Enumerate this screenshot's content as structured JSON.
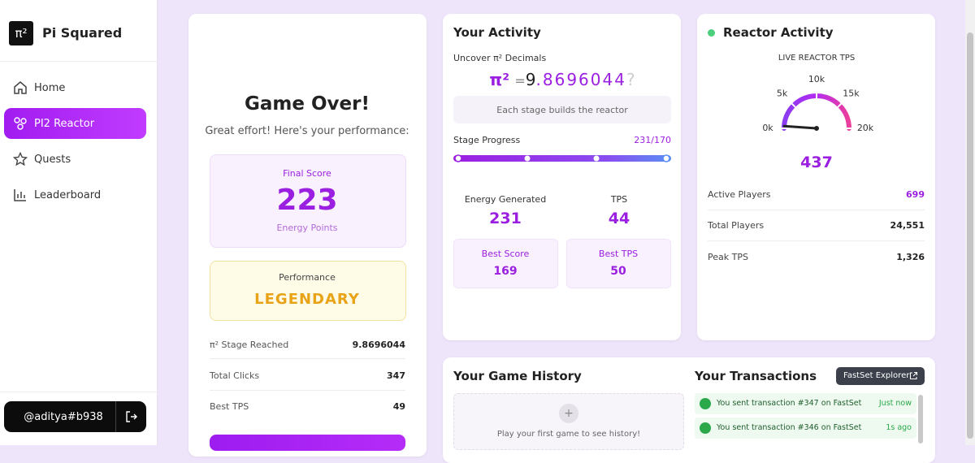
{
  "sidebar": {
    "logo": "π²",
    "brand": "Pi Squared",
    "nav": [
      "Home",
      "PI2 Reactor",
      "Quests",
      "Leaderboard"
    ],
    "user": "@aditya#b938"
  },
  "game_over": {
    "title": "Game Over!",
    "subtitle": "Great effort! Here's your performance:",
    "final_score_label": "Final Score",
    "final_score": 223,
    "final_score_unit": "Energy Points",
    "performance_label": "Performance",
    "performance": "LEGENDARY",
    "stats": [
      {
        "label": "π² Stage Reached",
        "value": "9.8696044"
      },
      {
        "label": "Total Clicks",
        "value": 347
      },
      {
        "label": "Best TPS",
        "value": 49
      }
    ]
  },
  "activity": {
    "title": "Your Activity",
    "decimals_label": "Uncover π² Decimals",
    "symbol": "π²",
    "equals": "=",
    "integer": "9",
    "decimals": ".8696044",
    "unknown": "?",
    "hint": "Each stage builds the reactor",
    "progress_label": "Stage Progress",
    "progress": "231/170",
    "energy_label": "Energy Generated",
    "energy": 231,
    "tps_label": "TPS",
    "tps": 44,
    "best_score_label": "Best Score",
    "best_score": 169,
    "best_tps_label": "Best TPS",
    "best_tps": 50
  },
  "reactor": {
    "title": "Reactor Activity",
    "gauge_label": "LIVE REACTOR TPS",
    "gauge_ticks": [
      {
        "value": 0,
        "label": "0k"
      },
      {
        "value": 5000,
        "label": "5k"
      },
      {
        "value": 10000,
        "label": "10k"
      },
      {
        "value": 15000,
        "label": "15k"
      },
      {
        "value": 20000,
        "label": "20k"
      }
    ],
    "tps": 437,
    "stats": [
      {
        "label": "Active Players",
        "value": 699
      },
      {
        "label": "Total Players",
        "value": "24,551"
      },
      {
        "label": "Peak TPS",
        "value": "1,326"
      }
    ]
  },
  "history": {
    "title": "Your Game History",
    "empty": "Play your first game to see history!"
  },
  "transactions": {
    "title": "Your Transactions",
    "explorer": "FastSet Explorer",
    "items": [
      {
        "text": "You sent transaction #347 on FastSet",
        "time": "Just now"
      },
      {
        "text": "You sent transaction #346 on FastSet",
        "time": "1s ago"
      }
    ]
  }
}
